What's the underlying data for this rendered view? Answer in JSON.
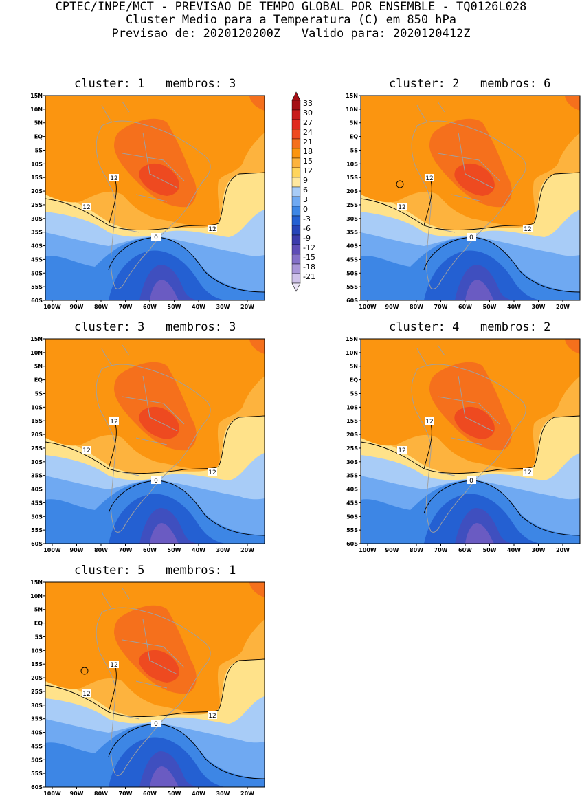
{
  "header": {
    "line1": "CPTEC/INPE/MCT - PREVISAO DE TEMPO GLOBAL POR ENSEMBLE - TQ0126L028",
    "line2": "Cluster Medio para a Temperatura (C) em 850 hPa",
    "line3": "Previsao de: 2020120200Z   Valido para: 2020120412Z"
  },
  "panels": [
    {
      "title": "cluster: 1   membros: 3"
    },
    {
      "title": "cluster: 2   membros: 6"
    },
    {
      "title": "cluster: 3   membros: 3"
    },
    {
      "title": "cluster: 4   membros: 2"
    },
    {
      "title": "cluster: 5   membros: 1"
    }
  ],
  "axes": {
    "lat_labels": [
      "15N",
      "10N",
      "5N",
      "EQ",
      "5S",
      "10S",
      "15S",
      "20S",
      "25S",
      "30S",
      "35S",
      "40S",
      "45S",
      "50S",
      "55S",
      "60S"
    ],
    "lon_labels": [
      "100W",
      "90W",
      "80W",
      "70W",
      "60W",
      "50W",
      "40W",
      "30W",
      "20W"
    ]
  },
  "contour_labels": {
    "twelve": "12",
    "zero": "0"
  },
  "colorbar": {
    "levels": [
      "33",
      "30",
      "27",
      "24",
      "21",
      "18",
      "15",
      "12",
      "9",
      "6",
      "3",
      "0",
      "-3",
      "-6",
      "-9",
      "-12",
      "-15",
      "-18",
      "-21"
    ],
    "colors": [
      "#a50f15",
      "#c81b1b",
      "#e02a1e",
      "#ee4a20",
      "#f5701c",
      "#fb9510",
      "#fdb33e",
      "#ffd55e",
      "#ffe8a0",
      "#a8ccf7",
      "#6fa9f2",
      "#3d86e5",
      "#2460d2",
      "#2644b8",
      "#3b3bab",
      "#5e4db6",
      "#8470c8",
      "#a996d8",
      "#cfc2ea"
    ],
    "top_color": "#a50f15",
    "bottom_color": "#ebe4f6"
  },
  "field_colors": {
    "c21": "#ee4a20",
    "c18": "#f5701c",
    "c15": "#fb9510",
    "c12": "#fdb33e",
    "c9": "#ffe28a",
    "c6": "#a8ccf7",
    "c3": "#6fa9f2",
    "c0": "#3d86e5",
    "cm3": "#2460d2",
    "cm6": "#3f4fbf",
    "cm9": "#6a5bc2",
    "land": "#a0a0a0"
  }
}
